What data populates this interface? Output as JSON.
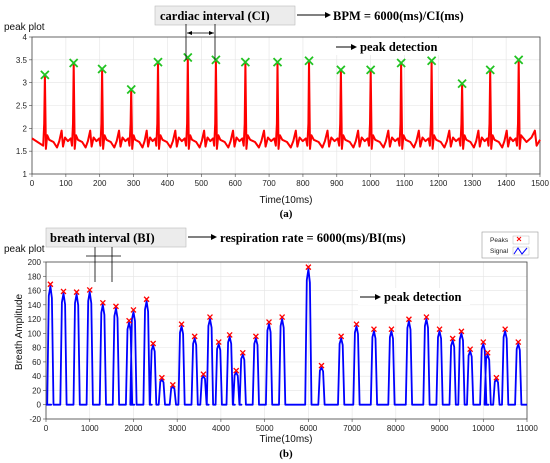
{
  "chart_data": [
    {
      "panel": "a",
      "type": "line",
      "caption": "(a)",
      "ylabel": "peak plot",
      "xlabel": "Time(10ms)",
      "xlim": [
        0,
        1500
      ],
      "ylim": [
        1,
        4
      ],
      "xticks": [
        "0",
        "100",
        "200",
        "300",
        "400",
        "500",
        "600",
        "700",
        "800",
        "900",
        "1000",
        "1100",
        "1200",
        "1300",
        "1400",
        "1500"
      ],
      "yticks": [
        "1",
        "1.5",
        "2",
        "2.5",
        "3",
        "3.5",
        "4"
      ],
      "grid": true,
      "series": [
        {
          "color": "#ff0000"
        }
      ],
      "peaks": {
        "color": "#22c322",
        "points": [
          {
            "x": 38,
            "y": 3.17
          },
          {
            "x": 123,
            "y": 3.43
          },
          {
            "x": 207,
            "y": 3.3
          },
          {
            "x": 293,
            "y": 2.85
          },
          {
            "x": 372,
            "y": 3.45
          },
          {
            "x": 460,
            "y": 3.55
          },
          {
            "x": 543,
            "y": 3.5
          },
          {
            "x": 630,
            "y": 3.45
          },
          {
            "x": 725,
            "y": 3.45
          },
          {
            "x": 818,
            "y": 3.48
          },
          {
            "x": 912,
            "y": 3.28
          },
          {
            "x": 1000,
            "y": 3.28
          },
          {
            "x": 1090,
            "y": 3.43
          },
          {
            "x": 1180,
            "y": 3.48
          },
          {
            "x": 1270,
            "y": 2.98
          },
          {
            "x": 1353,
            "y": 3.28
          },
          {
            "x": 1437,
            "y": 3.5
          }
        ]
      },
      "annotations": {
        "interval_label": "cardiac interval (CI)",
        "formula": "BPM = 6000(ms)/CI(ms)",
        "peak_label": "peak detection"
      }
    },
    {
      "panel": "b",
      "type": "line",
      "caption": "(b)",
      "ylabel": "Breath Amplitude",
      "panel_title": "peak plot",
      "xlabel": "Time(10ms)",
      "xlim": [
        0,
        11000
      ],
      "ylim": [
        -20,
        200
      ],
      "xticks": [
        "0",
        "1000",
        "2000",
        "3000",
        "4000",
        "5000",
        "6000",
        "7000",
        "8000",
        "9000",
        "10000",
        "11000"
      ],
      "yticks": [
        "-20",
        "0",
        "20",
        "40",
        "60",
        "80",
        "100",
        "120",
        "140",
        "160",
        "180",
        "200"
      ],
      "grid": true,
      "legend": {
        "position": "top-right",
        "entries": [
          {
            "label": "Peaks",
            "color": "#ff0000"
          },
          {
            "label": "Signal",
            "color": "#0000ff"
          }
        ]
      },
      "series": [
        {
          "name": "Signal",
          "color": "#0000ff"
        }
      ],
      "peaks": {
        "color": "#ff0000",
        "points": [
          {
            "x": 100,
            "y": 166
          },
          {
            "x": 400,
            "y": 156
          },
          {
            "x": 700,
            "y": 155
          },
          {
            "x": 1000,
            "y": 158
          },
          {
            "x": 1300,
            "y": 140
          },
          {
            "x": 1600,
            "y": 135
          },
          {
            "x": 1900,
            "y": 115
          },
          {
            "x": 2000,
            "y": 130
          },
          {
            "x": 2300,
            "y": 145
          },
          {
            "x": 2450,
            "y": 83
          },
          {
            "x": 2650,
            "y": 35
          },
          {
            "x": 2900,
            "y": 25
          },
          {
            "x": 3100,
            "y": 110
          },
          {
            "x": 3400,
            "y": 93
          },
          {
            "x": 3600,
            "y": 40
          },
          {
            "x": 3750,
            "y": 120
          },
          {
            "x": 3950,
            "y": 85
          },
          {
            "x": 4200,
            "y": 95
          },
          {
            "x": 4350,
            "y": 45
          },
          {
            "x": 4500,
            "y": 70
          },
          {
            "x": 4800,
            "y": 93
          },
          {
            "x": 5100,
            "y": 113
          },
          {
            "x": 5400,
            "y": 120
          },
          {
            "x": 6000,
            "y": 190
          },
          {
            "x": 6300,
            "y": 52
          },
          {
            "x": 6750,
            "y": 93
          },
          {
            "x": 7100,
            "y": 110
          },
          {
            "x": 7500,
            "y": 103
          },
          {
            "x": 7900,
            "y": 103
          },
          {
            "x": 8300,
            "y": 117
          },
          {
            "x": 8700,
            "y": 120
          },
          {
            "x": 9000,
            "y": 103
          },
          {
            "x": 9300,
            "y": 90
          },
          {
            "x": 9500,
            "y": 100
          },
          {
            "x": 9700,
            "y": 75
          },
          {
            "x": 10000,
            "y": 85
          },
          {
            "x": 10100,
            "y": 70
          },
          {
            "x": 10300,
            "y": 35
          },
          {
            "x": 10500,
            "y": 103
          },
          {
            "x": 10800,
            "y": 85
          }
        ]
      },
      "annotations": {
        "interval_label": "breath interval (BI)",
        "formula": "respiration rate = 6000(ms)/BI(ms)",
        "peak_label": "peak detection"
      }
    }
  ]
}
